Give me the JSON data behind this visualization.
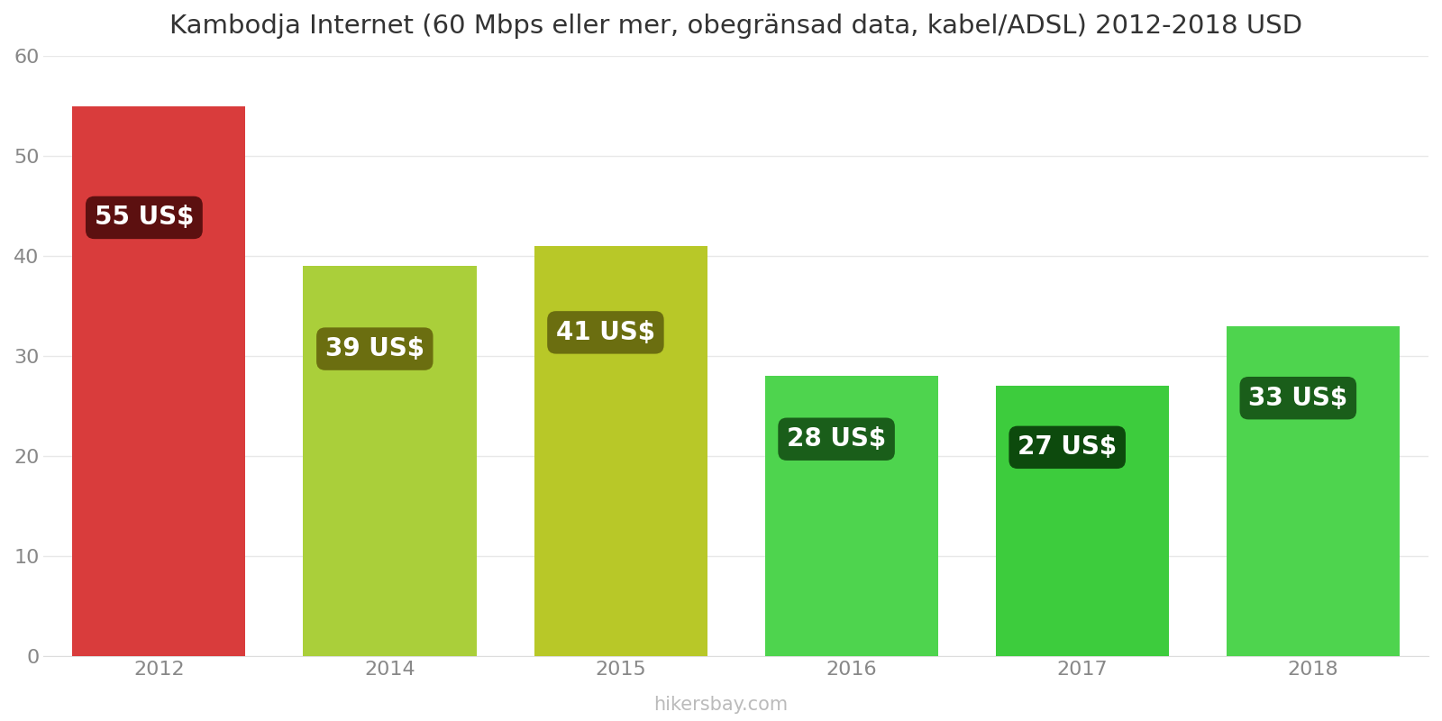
{
  "title": "Kambodja Internet (60 Mbps eller mer, obegränsad data, kabel/ADSL) 2012-2018 USD",
  "years": [
    "2012",
    "2014",
    "2015",
    "2016",
    "2017",
    "2018"
  ],
  "values": [
    55,
    39,
    41,
    28,
    27,
    33
  ],
  "bar_colors": [
    "#d93c3c",
    "#aacf3a",
    "#b8c828",
    "#4ed44e",
    "#3dcc3d",
    "#4ed44e"
  ],
  "label_bg_colors": [
    "#5c1010",
    "#6b6e10",
    "#6b6e10",
    "#1a5e1a",
    "#0d4a0d",
    "#1a5e1a"
  ],
  "labels": [
    "55 US$",
    "39 US$",
    "41 US$",
    "28 US$",
    "27 US$",
    "33 US$"
  ],
  "ylim": [
    0,
    60
  ],
  "yticks": [
    0,
    10,
    20,
    30,
    40,
    50,
    60
  ],
  "watermark": "hikersbay.com",
  "background_color": "#ffffff",
  "grid_color": "#e8e8e8",
  "title_fontsize": 21,
  "tick_fontsize": 16,
  "label_fontsize": 20,
  "watermark_fontsize": 15,
  "bar_width": 0.75,
  "x_positions": [
    0,
    1,
    2,
    3,
    4,
    5
  ]
}
